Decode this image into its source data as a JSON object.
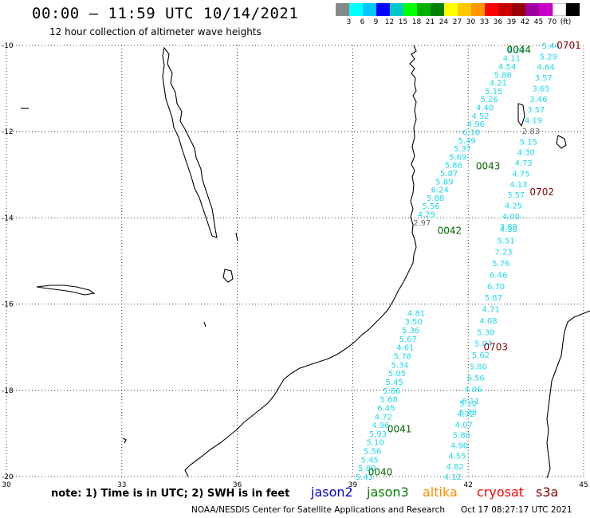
{
  "header": {
    "title": "00:00 – 11:59 UTC 10/14/2021",
    "subtitle": "12 hour collection of altimeter wave heights"
  },
  "scale": {
    "colors": [
      "#888888",
      "#00ffff",
      "#00c8ff",
      "#0000ff",
      "#00c8c8",
      "#00ff00",
      "#00b000",
      "#008000",
      "#ffff00",
      "#ffc800",
      "#ff9600",
      "#ff0000",
      "#c80000",
      "#960000",
      "#a000a0",
      "#c800c8",
      "#ffffff",
      "#000000"
    ],
    "labels": [
      "3",
      "6",
      "9",
      "12",
      "15",
      "18",
      "21",
      "24",
      "27",
      "30",
      "33",
      "36",
      "39",
      "42",
      "45",
      "70",
      "(ft)"
    ]
  },
  "chart_data": {
    "type": "map",
    "x_axis": {
      "ticks": [
        "30",
        "33",
        "36",
        "39",
        "42",
        "45"
      ],
      "range": [
        30,
        45
      ],
      "unit": "degrees longitude"
    },
    "y_axis": {
      "ticks": [
        "-10",
        "-12",
        "-14",
        "-16",
        "-18",
        "-20"
      ],
      "range": [
        -20,
        -10
      ],
      "unit": "degrees latitude"
    },
    "grid": true,
    "pass_labels": [
      {
        "text": "0701",
        "color": "#8b0000",
        "lon": 44.3,
        "lat": -10.0
      },
      {
        "text": "0044",
        "color": "#006400",
        "lon": 43.0,
        "lat": -10.1
      },
      {
        "text": "0043",
        "color": "#006400",
        "lon": 42.2,
        "lat": -12.8
      },
      {
        "text": "0702",
        "color": "#8b0000",
        "lon": 43.6,
        "lat": -13.4
      },
      {
        "text": "0042",
        "color": "#006400",
        "lon": 41.2,
        "lat": -14.3
      },
      {
        "text": "0703",
        "color": "#8b0000",
        "lon": 42.4,
        "lat": -17.0
      },
      {
        "text": "0041",
        "color": "#006400",
        "lon": 39.9,
        "lat": -18.9
      },
      {
        "text": "0040",
        "color": "#006400",
        "lon": 39.4,
        "lat": -19.9
      }
    ],
    "tracks": [
      {
        "name": "0044-0043-0042",
        "start": [
          43.25,
          -10.1
        ],
        "end": [
          40.8,
          -14.1
        ],
        "values": [
          "4.22",
          "4.11",
          "4.54",
          "5.88",
          "4.21",
          "5.15",
          "5.26",
          "4.40",
          "4.52",
          "4.96",
          "6.10",
          "5.49",
          "5.37",
          "5.69",
          "5.86",
          "5.87",
          "5.89",
          "6.24",
          "5.88",
          "5.56",
          "4.29",
          "2.97"
        ],
        "gray": [
          21
        ]
      },
      {
        "name": "0701-0702",
        "start": [
          44.15,
          -10.0
        ],
        "end": [
          43.05,
          -14.2
        ],
        "values": [
          "5.44",
          "5.29",
          "4.64",
          "3.57",
          "3.65",
          "3.46",
          "3.57",
          "4.19",
          "2.83",
          "5.15",
          "4.30",
          "4.73",
          "4.75",
          "4.13",
          "3.57",
          "4.25",
          "4.00",
          "3.89"
        ],
        "gray": [
          8
        ]
      },
      {
        "name": "0702-0703",
        "start": [
          43.05,
          -14.25
        ],
        "end": [
          42.0,
          -18.5
        ],
        "values": [
          "4.30",
          "5.51",
          "7.23",
          "5.76",
          "6.46",
          "6.70",
          "5.87",
          "4.71",
          "4.08",
          "5.30",
          "5.04",
          "5.62",
          "5.80",
          "6.56",
          "4.96",
          "6.11",
          "5.43"
        ],
        "gray": []
      },
      {
        "name": "0041-0040",
        "start": [
          40.65,
          -16.2
        ],
        "end": [
          39.3,
          -20.0
        ],
        "values": [
          "4.81",
          "3.50",
          "5.36",
          "5.67",
          "4.61",
          "5.78",
          "5.34",
          "5.05",
          "5.45",
          "5.66",
          "5.68",
          "6.45",
          "4.72",
          "4.96",
          "5.93",
          "5.10",
          "5.56",
          "5.45",
          "5.80",
          "5.43"
        ],
        "gray": []
      },
      {
        "name": "0042-0040",
        "start": [
          42.0,
          -18.3
        ],
        "end": [
          41.6,
          -20.0
        ],
        "values": [
          "5.12",
          "4.72",
          "4.07",
          "5.80",
          "4.90",
          "4.55",
          "4.82",
          "4.12"
        ],
        "gray": []
      }
    ]
  },
  "footer": {
    "note": "note:  1) Time is in UTC;  2) SWH is in feet",
    "missions": [
      {
        "label": "jason2",
        "color": "#0000cd"
      },
      {
        "label": "jason3",
        "color": "#008000"
      },
      {
        "label": "altika",
        "color": "#ff8c00"
      },
      {
        "label": "cryosat",
        "color": "#ff0000"
      },
      {
        "label": "s3a",
        "color": "#8b0000"
      }
    ],
    "credit": "NOAA/NESDIS Center for Satellite Applications and Research",
    "timestamp": "Oct 17 08:27:17 UTC 2021"
  }
}
